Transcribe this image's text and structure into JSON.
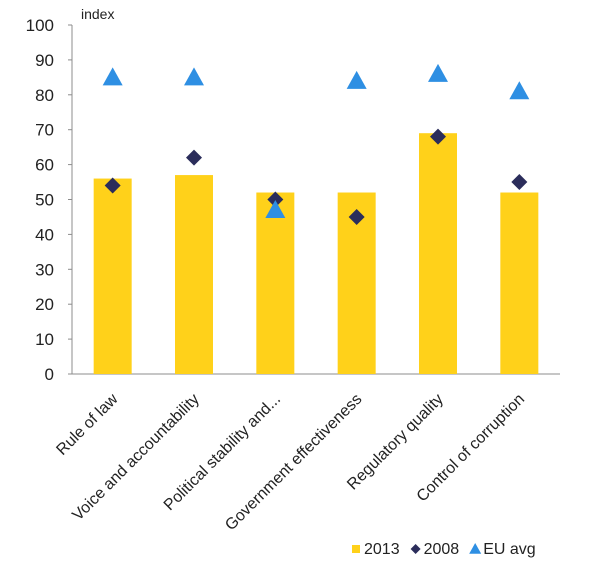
{
  "chart_data": {
    "type": "bar",
    "ylabel": "index",
    "ylim": [
      0,
      100
    ],
    "yticks": [
      0,
      10,
      20,
      30,
      40,
      50,
      60,
      70,
      80,
      90,
      100
    ],
    "categories": [
      "Rule of law",
      "Voice and accountability",
      "Political stability and...",
      "Government effectiveness",
      "Regulatory quality",
      "Control of corruption"
    ],
    "series": [
      {
        "name": "2013",
        "kind": "bar",
        "marker": "square",
        "color": "#FFD11A",
        "values": [
          56,
          57,
          52,
          52,
          69,
          52
        ]
      },
      {
        "name": "2008",
        "kind": "marker",
        "marker": "diamond",
        "color": "#2B2D5B",
        "values": [
          54,
          62,
          50,
          45,
          68,
          55
        ]
      },
      {
        "name": "EU avg",
        "kind": "marker",
        "marker": "triangle",
        "color": "#2E8FE3",
        "values": [
          85,
          85,
          47,
          84,
          86,
          81
        ]
      }
    ],
    "grid": false,
    "legend_position": "bottom-right"
  }
}
